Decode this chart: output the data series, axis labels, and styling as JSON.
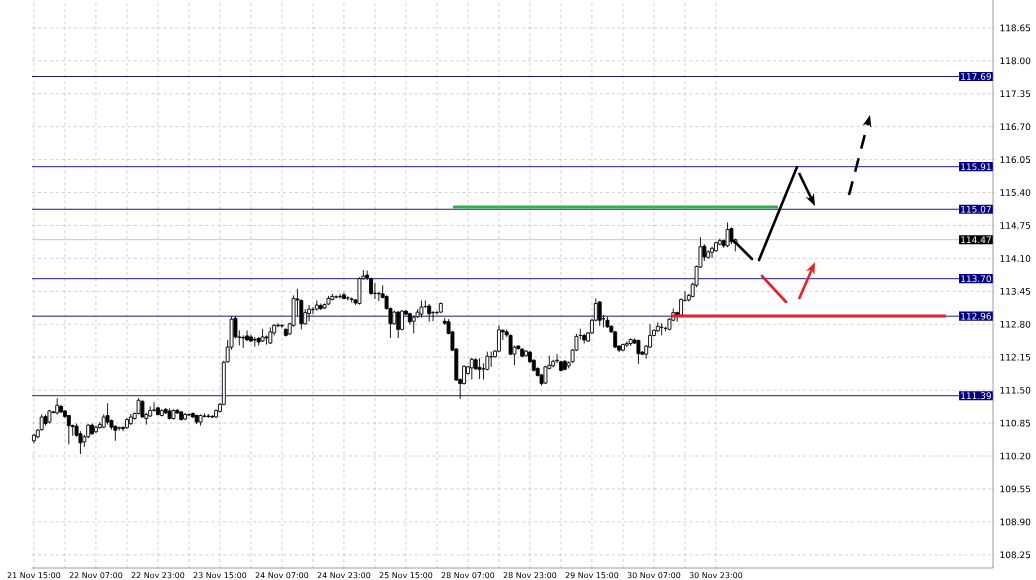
{
  "chart_data": {
    "type": "candlestick",
    "categories": [
      "21 Nov 15:00",
      null,
      null,
      null,
      null,
      null,
      null,
      null,
      null,
      null,
      null,
      null,
      null,
      null,
      null,
      null,
      "22 Nov 07:00",
      null,
      null,
      null,
      null,
      null,
      null,
      null,
      null,
      null,
      null,
      null,
      null,
      null,
      null,
      null,
      "22 Nov 23:00",
      null,
      null,
      null,
      null,
      null,
      null,
      null,
      null,
      null,
      null,
      null,
      null,
      null,
      null,
      null,
      "23 Nov 15:00",
      null,
      null,
      null,
      null,
      null,
      null,
      null,
      null,
      null,
      null,
      null,
      null,
      null,
      null,
      null,
      "24 Nov 07:00",
      null,
      null,
      null,
      null,
      null,
      null,
      null,
      null,
      null,
      null,
      null,
      null,
      null,
      null,
      null,
      "24 Nov 23:00",
      null,
      null,
      null,
      null,
      null,
      null,
      null,
      null,
      null,
      null,
      null,
      null,
      null,
      null,
      null,
      "25 Nov 15:00",
      null,
      null,
      null,
      null,
      null,
      null,
      null,
      null,
      null,
      null,
      null,
      null,
      null,
      null,
      null,
      "28 Nov 07:00",
      null,
      null,
      null,
      null,
      null,
      null,
      null,
      null,
      null,
      null,
      null,
      null,
      null,
      null,
      null,
      "28 Nov 23:00",
      null,
      null,
      null,
      null,
      null,
      null,
      null,
      null,
      null,
      null,
      null,
      null,
      null,
      null,
      null,
      "29 Nov 15:00",
      null,
      null,
      null,
      null,
      null,
      null,
      null,
      null,
      null,
      null,
      null,
      null,
      null,
      null,
      null,
      "30 Nov 07:00",
      null,
      null,
      null,
      null,
      null,
      null,
      null,
      null,
      null,
      null,
      null,
      null,
      null,
      null,
      null,
      "30 Nov 23:00",
      null,
      null,
      null,
      null,
      null,
      null,
      null,
      null,
      null,
      null,
      null,
      null,
      null,
      null,
      null,
      null,
      null,
      null,
      null,
      null,
      null,
      null,
      null,
      null,
      null,
      null,
      null,
      null,
      null,
      null,
      null,
      null,
      null,
      null,
      null,
      null,
      null,
      null,
      null,
      null,
      null,
      null,
      null,
      null,
      null,
      null,
      null,
      null,
      null,
      null,
      null,
      null,
      null,
      null,
      null,
      null,
      null,
      null,
      null,
      null,
      null,
      null,
      null,
      null,
      null,
      null,
      null,
      null,
      null,
      null,
      null
    ],
    "ohlc": [
      [
        110.5,
        110.64,
        110.45,
        110.61
      ],
      [
        110.58,
        110.73,
        110.55,
        110.71
      ],
      [
        110.72,
        111.02,
        110.7,
        110.97
      ],
      [
        110.98,
        111.02,
        110.8,
        110.84
      ],
      [
        110.87,
        111.11,
        110.84,
        111.09
      ],
      [
        111.06,
        111.09,
        111.04,
        111.07
      ],
      [
        111.05,
        111.34,
        111.02,
        111.2
      ],
      [
        111.18,
        111.21,
        111.05,
        111.07
      ],
      [
        111.09,
        111.1,
        110.95,
        110.98
      ],
      [
        111.0,
        111.01,
        110.43,
        110.8
      ],
      [
        110.8,
        110.82,
        110.6,
        110.78
      ],
      [
        110.79,
        110.84,
        110.58,
        110.61
      ],
      [
        110.64,
        110.69,
        110.24,
        110.46
      ],
      [
        110.48,
        110.62,
        110.38,
        110.58
      ],
      [
        110.58,
        110.83,
        110.55,
        110.81
      ],
      [
        110.81,
        110.84,
        110.62,
        110.64
      ],
      [
        110.68,
        110.8,
        110.65,
        110.77
      ],
      [
        110.76,
        110.87,
        110.74,
        110.82
      ],
      [
        110.77,
        111.02,
        110.75,
        110.97
      ],
      [
        111.0,
        111.24,
        110.82,
        110.87
      ],
      [
        110.9,
        110.92,
        110.72,
        110.77
      ],
      [
        110.79,
        110.8,
        110.5,
        110.71
      ],
      [
        110.75,
        110.78,
        110.7,
        110.76
      ],
      [
        110.76,
        110.79,
        110.69,
        110.74
      ],
      [
        110.76,
        110.95,
        110.74,
        110.92
      ],
      [
        110.84,
        111.03,
        110.81,
        110.97
      ],
      [
        110.94,
        111.06,
        110.92,
        111.04
      ],
      [
        111.04,
        111.34,
        111.02,
        111.3
      ],
      [
        111.28,
        111.3,
        110.96,
        110.97
      ],
      [
        110.94,
        111.05,
        110.82,
        111.02
      ],
      [
        110.99,
        111.18,
        110.97,
        111.1
      ],
      [
        111.1,
        111.26,
        111.08,
        111.11
      ],
      [
        111.15,
        111.17,
        111.0,
        111.02
      ],
      [
        111.0,
        111.12,
        110.98,
        111.1
      ],
      [
        111.12,
        111.15,
        111.03,
        111.05
      ],
      [
        111.09,
        111.14,
        110.92,
        110.94
      ],
      [
        110.94,
        111.12,
        110.92,
        111.1
      ],
      [
        111.1,
        111.13,
        111.03,
        111.05
      ],
      [
        111.07,
        111.09,
        110.9,
        110.92
      ],
      [
        110.93,
        111.05,
        110.91,
        111.02
      ],
      [
        111.02,
        111.04,
        110.99,
        111.01
      ],
      [
        111.04,
        111.06,
        110.95,
        110.97
      ],
      [
        111.0,
        111.02,
        110.83,
        110.87
      ],
      [
        110.87,
        111.02,
        110.8,
        111.0
      ],
      [
        110.98,
        111.04,
        110.96,
        110.99
      ],
      [
        110.99,
        111.03,
        110.95,
        110.98
      ],
      [
        110.98,
        111.01,
        110.95,
        110.97
      ],
      [
        110.97,
        111.12,
        110.95,
        111.1
      ],
      [
        111.08,
        111.25,
        111.06,
        111.22
      ],
      [
        111.22,
        112.08,
        111.2,
        112.05
      ],
      [
        112.06,
        112.49,
        112.04,
        112.35
      ],
      [
        112.35,
        112.96,
        112.3,
        112.9
      ],
      [
        112.92,
        112.96,
        112.52,
        112.55
      ],
      [
        112.55,
        112.68,
        112.38,
        112.54
      ],
      [
        112.54,
        112.58,
        112.33,
        112.53
      ],
      [
        112.57,
        112.68,
        112.47,
        112.49
      ],
      [
        112.55,
        112.59,
        112.45,
        112.47
      ],
      [
        112.5,
        112.55,
        112.36,
        112.49
      ],
      [
        112.52,
        112.55,
        112.38,
        112.45
      ],
      [
        112.47,
        112.71,
        112.45,
        112.55
      ],
      [
        112.55,
        112.58,
        112.4,
        112.53
      ],
      [
        112.43,
        112.74,
        112.41,
        112.65
      ],
      [
        112.63,
        112.8,
        112.58,
        112.78
      ],
      [
        112.77,
        112.82,
        112.74,
        112.78
      ],
      [
        112.78,
        112.8,
        112.73,
        112.77
      ],
      [
        112.7,
        112.72,
        112.56,
        112.58
      ],
      [
        112.61,
        112.83,
        112.59,
        112.81
      ],
      [
        112.78,
        113.37,
        112.75,
        113.31
      ],
      [
        113.3,
        113.5,
        112.97,
        113.28
      ],
      [
        113.27,
        113.29,
        112.7,
        112.81
      ],
      [
        112.81,
        113.1,
        112.79,
        113.03
      ],
      [
        113.01,
        113.18,
        112.86,
        113.1
      ],
      [
        113.09,
        113.14,
        113.0,
        113.09
      ],
      [
        113.1,
        113.27,
        113.07,
        113.18
      ],
      [
        113.17,
        113.21,
        113.08,
        113.11
      ],
      [
        113.12,
        113.21,
        113.1,
        113.19
      ],
      [
        113.2,
        113.36,
        113.18,
        113.31
      ],
      [
        113.29,
        113.4,
        113.27,
        113.35
      ],
      [
        113.34,
        113.37,
        113.31,
        113.34
      ],
      [
        113.34,
        113.4,
        113.31,
        113.35
      ],
      [
        113.38,
        113.42,
        113.29,
        113.31
      ],
      [
        113.32,
        113.35,
        113.27,
        113.32
      ],
      [
        113.3,
        113.33,
        113.23,
        113.29
      ],
      [
        113.28,
        113.3,
        113.18,
        113.22
      ],
      [
        113.21,
        113.73,
        113.19,
        113.7
      ],
      [
        113.7,
        113.87,
        113.68,
        113.75
      ],
      [
        113.77,
        113.86,
        113.67,
        113.72
      ],
      [
        113.7,
        113.72,
        113.38,
        113.41
      ],
      [
        113.41,
        113.62,
        113.3,
        113.41
      ],
      [
        113.41,
        113.44,
        113.26,
        113.4
      ],
      [
        113.4,
        113.57,
        113.31,
        113.33
      ],
      [
        113.35,
        113.37,
        113.09,
        113.11
      ],
      [
        113.11,
        113.13,
        112.53,
        112.81
      ],
      [
        112.81,
        113.07,
        112.79,
        113.04
      ],
      [
        113.04,
        113.06,
        112.53,
        112.7
      ],
      [
        112.7,
        113.08,
        112.68,
        113.06
      ],
      [
        113.06,
        113.08,
        112.98,
        113.0
      ],
      [
        113.01,
        113.03,
        112.8,
        112.85
      ],
      [
        112.86,
        112.97,
        112.62,
        112.94
      ],
      [
        112.95,
        113.1,
        112.92,
        113.04
      ],
      [
        113.0,
        113.27,
        112.93,
        113.14
      ],
      [
        113.15,
        113.27,
        113.12,
        113.15
      ],
      [
        113.16,
        113.2,
        112.85,
        113.01
      ],
      [
        113.03,
        113.06,
        112.86,
        113.03
      ],
      [
        113.03,
        113.06,
        113.0,
        113.03
      ],
      [
        113.04,
        113.23,
        113.02,
        113.21
      ],
      [
        112.86,
        112.92,
        112.79,
        112.82
      ],
      [
        112.85,
        112.9,
        112.6,
        112.62
      ],
      [
        112.65,
        112.67,
        112.27,
        112.29
      ],
      [
        112.31,
        112.33,
        111.68,
        111.7
      ],
      [
        111.71,
        111.73,
        111.33,
        111.63
      ],
      [
        111.63,
        111.99,
        111.61,
        111.97
      ],
      [
        111.83,
        111.98,
        111.81,
        111.96
      ],
      [
        111.94,
        112.14,
        111.71,
        112.11
      ],
      [
        112.1,
        112.13,
        111.9,
        111.92
      ],
      [
        111.95,
        112.13,
        111.72,
        111.91
      ],
      [
        111.92,
        112.03,
        111.71,
        111.92
      ],
      [
        111.91,
        112.26,
        111.89,
        112.17
      ],
      [
        112.16,
        112.26,
        111.96,
        112.16
      ],
      [
        112.16,
        112.29,
        112.14,
        112.27
      ],
      [
        112.27,
        112.78,
        112.25,
        112.69
      ],
      [
        112.68,
        112.7,
        112.49,
        112.65
      ],
      [
        112.65,
        112.7,
        112.55,
        112.59
      ],
      [
        112.58,
        112.6,
        112.19,
        112.21
      ],
      [
        112.21,
        112.38,
        111.99,
        112.35
      ],
      [
        112.37,
        112.39,
        112.3,
        112.32
      ],
      [
        112.31,
        112.33,
        112.15,
        112.17
      ],
      [
        112.18,
        112.29,
        112.16,
        112.27
      ],
      [
        112.25,
        112.27,
        112.04,
        112.06
      ],
      [
        112.09,
        112.11,
        111.87,
        111.89
      ],
      [
        111.93,
        111.95,
        111.77,
        111.79
      ],
      [
        111.8,
        111.82,
        111.59,
        111.63
      ],
      [
        111.64,
        111.98,
        111.62,
        111.96
      ],
      [
        111.93,
        112.18,
        111.91,
        111.99
      ],
      [
        111.98,
        112.1,
        111.95,
        112.07
      ],
      [
        112.08,
        112.21,
        112.03,
        112.09
      ],
      [
        112.06,
        112.08,
        111.87,
        111.89
      ],
      [
        112.07,
        112.09,
        111.89,
        111.91
      ],
      [
        111.98,
        112.07,
        111.93,
        112.04
      ],
      [
        112.06,
        112.31,
        112.04,
        112.29
      ],
      [
        112.29,
        112.61,
        112.27,
        112.56
      ],
      [
        112.58,
        112.71,
        112.5,
        112.58
      ],
      [
        112.58,
        112.61,
        112.42,
        112.49
      ],
      [
        112.47,
        112.65,
        112.45,
        112.63
      ],
      [
        112.63,
        112.91,
        112.61,
        112.88
      ],
      [
        112.88,
        113.31,
        112.86,
        113.21
      ],
      [
        113.24,
        113.26,
        112.77,
        112.88
      ],
      [
        112.91,
        112.98,
        112.74,
        112.91
      ],
      [
        112.88,
        112.95,
        112.73,
        112.75
      ],
      [
        112.76,
        112.78,
        112.63,
        112.65
      ],
      [
        112.65,
        112.67,
        112.33,
        112.35
      ],
      [
        112.37,
        112.39,
        112.25,
        112.29
      ],
      [
        112.29,
        112.42,
        112.27,
        112.4
      ],
      [
        112.39,
        112.46,
        112.35,
        112.42
      ],
      [
        112.42,
        112.52,
        112.37,
        112.5
      ],
      [
        112.49,
        112.52,
        112.41,
        112.43
      ],
      [
        112.48,
        112.5,
        112.02,
        112.22
      ],
      [
        112.25,
        112.27,
        112.19,
        112.21
      ],
      [
        112.21,
        112.39,
        112.12,
        112.37
      ],
      [
        112.35,
        112.8,
        112.33,
        112.58
      ],
      [
        112.58,
        112.7,
        112.56,
        112.68
      ],
      [
        112.67,
        112.84,
        112.65,
        112.76
      ],
      [
        112.74,
        112.82,
        112.58,
        112.74
      ],
      [
        112.72,
        112.75,
        112.66,
        112.72
      ],
      [
        112.7,
        112.92,
        112.68,
        112.9
      ],
      [
        112.88,
        113.11,
        112.86,
        113.03
      ],
      [
        113.03,
        113.05,
        112.85,
        112.98
      ],
      [
        112.98,
        113.31,
        112.96,
        113.29
      ],
      [
        113.27,
        113.45,
        113.25,
        113.27
      ],
      [
        113.28,
        113.4,
        113.25,
        113.37
      ],
      [
        113.35,
        113.62,
        113.33,
        113.59
      ],
      [
        113.57,
        113.96,
        113.53,
        113.94
      ],
      [
        113.93,
        114.52,
        113.91,
        114.33
      ],
      [
        114.34,
        114.38,
        114.05,
        114.13
      ],
      [
        114.12,
        114.26,
        114.1,
        114.23
      ],
      [
        114.22,
        114.33,
        114.11,
        114.3
      ],
      [
        114.25,
        114.43,
        114.23,
        114.41
      ],
      [
        114.38,
        114.49,
        114.36,
        114.45
      ],
      [
        114.45,
        114.47,
        114.31,
        114.35
      ],
      [
        114.35,
        114.81,
        114.32,
        114.67
      ],
      [
        114.69,
        114.71,
        114.38,
        114.43
      ],
      [
        114.4,
        114.49,
        114.24,
        114.47
      ],
      null,
      null,
      null,
      null,
      null,
      null,
      null,
      null,
      null,
      null,
      null,
      null,
      null,
      null,
      null,
      null,
      null,
      null,
      null,
      null,
      null,
      null,
      null,
      null,
      null,
      null,
      null,
      null,
      null,
      null,
      null,
      null,
      null,
      null,
      null,
      null,
      null,
      null,
      null,
      null,
      null,
      null,
      null,
      null,
      null,
      null,
      null,
      null,
      null,
      null,
      null,
      null,
      null,
      null,
      null,
      null,
      null,
      null,
      null,
      null,
      null,
      null,
      null,
      null,
      null,
      null
    ],
    "ylim": [
      107.99,
      119.2
    ],
    "yticks": [
      108.25,
      {
        "value": 108.9,
        "label": "108.90"
      },
      109.55,
      {
        "value": 110.2,
        "label": "110.20"
      },
      110.85,
      {
        "value": 111.5,
        "label": "111.50"
      },
      112.15,
      {
        "value": 112.8,
        "label": "112.80"
      },
      113.45,
      {
        "value": 114.1,
        "label": "114.10"
      },
      114.75,
      {
        "value": 115.4,
        "label": "115.40"
      },
      116.05,
      {
        "value": 116.7,
        "label": "116.70"
      },
      117.35,
      {
        "value": 118,
        "label": "118.00"
      },
      118.65
    ],
    "grid": true,
    "ref_lines": [
      {
        "axis": "y",
        "value": 117.69,
        "label": "117.69",
        "color": "#000080"
      },
      {
        "axis": "y",
        "value": 115.91,
        "label": "115.91",
        "color": "#000080"
      },
      {
        "axis": "y",
        "value": 115.07,
        "label": "115.07",
        "color": "#000080"
      },
      {
        "axis": "y",
        "value": 114.47,
        "label": "114.47",
        "color": "#c0c0c0"
      },
      {
        "axis": "y",
        "value": 113.7,
        "label": "113.70",
        "color": "#000080"
      },
      {
        "axis": "y",
        "value": 112.96,
        "label": "112.96",
        "color": "#000080"
      },
      {
        "axis": "y",
        "value": 111.39,
        "label": "111.39",
        "color": "#000080"
      }
    ]
  }
}
